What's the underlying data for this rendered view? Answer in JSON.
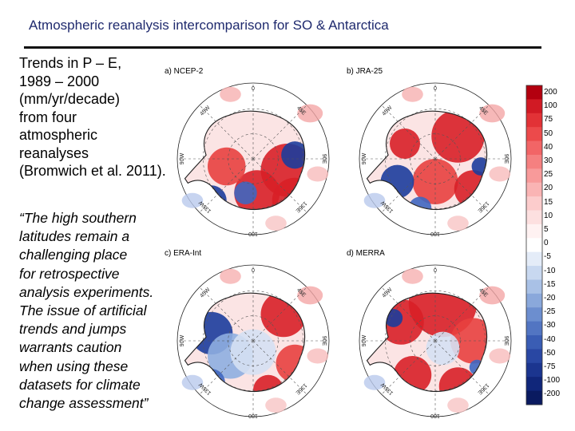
{
  "slide": {
    "title": "Atmospheric reanalysis intercomparison for SO & Antarctica",
    "text_lines": [
      "Trends in P – E,",
      "1989 – 2000",
      "(mm/yr/decade)",
      "from four",
      "atmospheric",
      "reanalyses",
      "(Bromwich et al. 2011)."
    ],
    "quote_lines": [
      "“The high southern",
      "latitudes remain a",
      "challenging place",
      "for retrospective",
      "analysis experiments.",
      "The issue of artificial",
      "trends and jumps",
      "warrants caution",
      "when using these",
      "datasets for climate",
      "change assessment”"
    ]
  },
  "figure": {
    "panels": [
      {
        "label": "a) NCEP-2"
      },
      {
        "label": "b) JRA-25"
      },
      {
        "label": "c) ERA-Int"
      },
      {
        "label": "d) MERRA"
      }
    ],
    "map_labels": {
      "top": "0",
      "right": "90E",
      "bottom": "180",
      "left": "90W",
      "tr": "45E",
      "tl": "45W",
      "br": "135E",
      "bl": "135W"
    },
    "colorbar": {
      "labels": [
        "200",
        "100",
        "75",
        "50",
        "40",
        "30",
        "25",
        "20",
        "15",
        "10",
        "5",
        "0",
        "-5",
        "-10",
        "-15",
        "-20",
        "-25",
        "-30",
        "-40",
        "-50",
        "-75",
        "-100",
        "-200"
      ],
      "colors": [
        "#b3000f",
        "#d11a24",
        "#e23236",
        "#ec4a4b",
        "#f26566",
        "#f58080",
        "#f89a9a",
        "#fab4b4",
        "#fccccc",
        "#fde0e0",
        "#fff2f2",
        "#ffffff",
        "#e4ecf8",
        "#c8d8f0",
        "#a9c1e6",
        "#8aa8db",
        "#6c8ecf",
        "#5275c2",
        "#3a5db4",
        "#2947a3",
        "#1b358f",
        "#10267a",
        "#0a1a60"
      ]
    }
  }
}
